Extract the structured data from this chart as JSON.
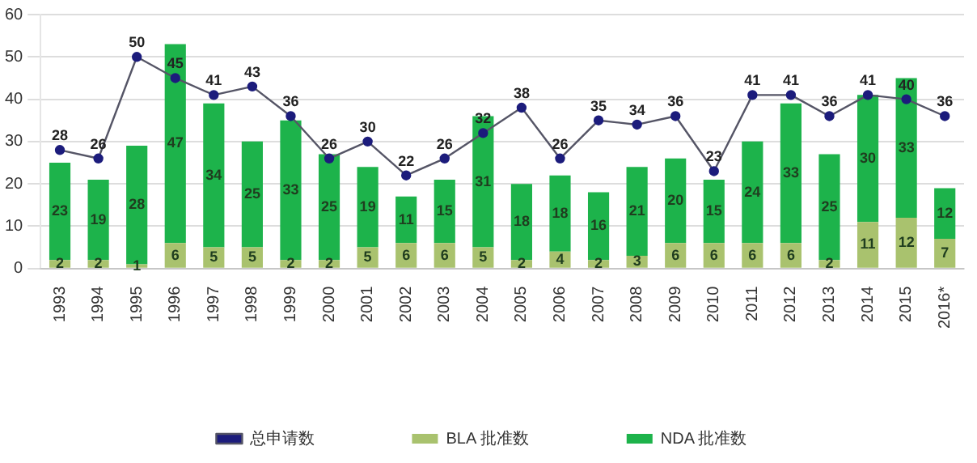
{
  "chart_data": {
    "type": "bar",
    "stacked": true,
    "categories": [
      "1993",
      "1994",
      "1995",
      "1996",
      "1997",
      "1998",
      "1999",
      "2000",
      "2001",
      "2002",
      "2003",
      "2004",
      "2005",
      "2006",
      "2007",
      "2008",
      "2009",
      "2010",
      "2011",
      "2012",
      "2013",
      "2014",
      "2015",
      "2016*"
    ],
    "series": [
      {
        "name": "BLA 批准数",
        "color": "#a9c26e",
        "values": [
          2,
          2,
          1,
          6,
          5,
          5,
          2,
          2,
          5,
          6,
          6,
          5,
          2,
          4,
          2,
          3,
          6,
          6,
          6,
          6,
          2,
          11,
          12,
          7
        ]
      },
      {
        "name": "NDA 批准数",
        "color": "#1db34b",
        "values": [
          23,
          19,
          28,
          47,
          34,
          25,
          33,
          25,
          19,
          11,
          15,
          31,
          18,
          18,
          16,
          21,
          20,
          15,
          24,
          33,
          25,
          30,
          33,
          12
        ]
      },
      {
        "name": "总申请数",
        "type": "line",
        "color": "#1c1c7c",
        "marker": "circle",
        "values": [
          28,
          26,
          50,
          45,
          41,
          43,
          36,
          26,
          30,
          22,
          26,
          32,
          38,
          26,
          35,
          34,
          36,
          23,
          41,
          41,
          36,
          41,
          40,
          36
        ]
      }
    ],
    "ylim": [
      0,
      60
    ],
    "yticks": [
      0,
      10,
      20,
      30,
      40,
      50,
      60
    ],
    "grid": "y",
    "legend": "bottom",
    "data_labels": true
  }
}
